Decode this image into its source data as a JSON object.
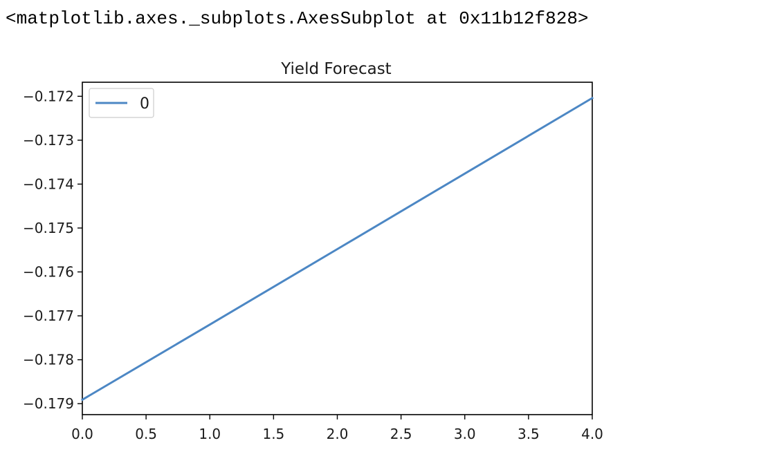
{
  "output_repr": "<matplotlib.axes._subplots.AxesSubplot at 0x11b12f828>",
  "chart_data": {
    "type": "line",
    "title": "Yield Forecast",
    "xlabel": "",
    "ylabel": "",
    "xlim": [
      0.0,
      4.0
    ],
    "ylim": [
      -0.17925,
      -0.17168
    ],
    "grid": false,
    "legend_position": "top-left",
    "x_ticks": [
      0.0,
      0.5,
      1.0,
      1.5,
      2.0,
      2.5,
      3.0,
      3.5,
      4.0
    ],
    "x_tick_labels": [
      "0.0",
      "0.5",
      "1.0",
      "1.5",
      "2.0",
      "2.5",
      "3.0",
      "3.5",
      "4.0"
    ],
    "y_ticks": [
      -0.179,
      -0.178,
      -0.177,
      -0.176,
      -0.175,
      -0.174,
      -0.173,
      -0.172
    ],
    "y_tick_labels": [
      "−0.179",
      "−0.178",
      "−0.177",
      "−0.176",
      "−0.175",
      "−0.174",
      "−0.173",
      "−0.172"
    ],
    "x": [
      0,
      1,
      2,
      3,
      4
    ],
    "series": [
      {
        "name": "0",
        "color": "#4c87c4",
        "values": [
          -0.17891,
          -0.1772,
          -0.17548,
          -0.17376,
          -0.17204
        ]
      }
    ]
  }
}
